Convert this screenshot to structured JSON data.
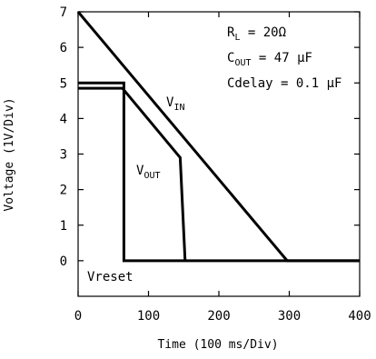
{
  "chart_data": {
    "type": "line",
    "xlabel": "Time (100 ms/Div)",
    "ylabel": "Voltage (1V/Div)",
    "xlim": [
      0,
      400
    ],
    "ylim": [
      -1,
      7
    ],
    "x_ticks": [
      0,
      100,
      200,
      300,
      400
    ],
    "y_ticks": [
      0,
      1,
      2,
      3,
      4,
      5,
      6,
      7
    ],
    "grid": false,
    "series": [
      {
        "name": "VIN",
        "label_main": "V",
        "label_sub": "IN",
        "points": [
          [
            0,
            7
          ],
          [
            297,
            0
          ],
          [
            400,
            0
          ]
        ]
      },
      {
        "name": "VOUT",
        "label_main": "V",
        "label_sub": "OUT",
        "points": [
          [
            0,
            4.85
          ],
          [
            63,
            4.85
          ],
          [
            145,
            2.9
          ],
          [
            152,
            0
          ]
        ]
      },
      {
        "name": "Vreset",
        "label_main": "Vreset",
        "label_sub": "",
        "points": [
          [
            0,
            5.0
          ],
          [
            65,
            5.0
          ],
          [
            65,
            0
          ],
          [
            400,
            0
          ]
        ]
      }
    ],
    "conditions": [
      {
        "main": "R",
        "sub": "L",
        "rest": " = 20Ω"
      },
      {
        "main": "C",
        "sub": "OUT",
        "rest": " = 47 μF"
      },
      {
        "main": "Cdelay",
        "sub": "",
        "rest": " = 0.1 μF"
      }
    ]
  }
}
